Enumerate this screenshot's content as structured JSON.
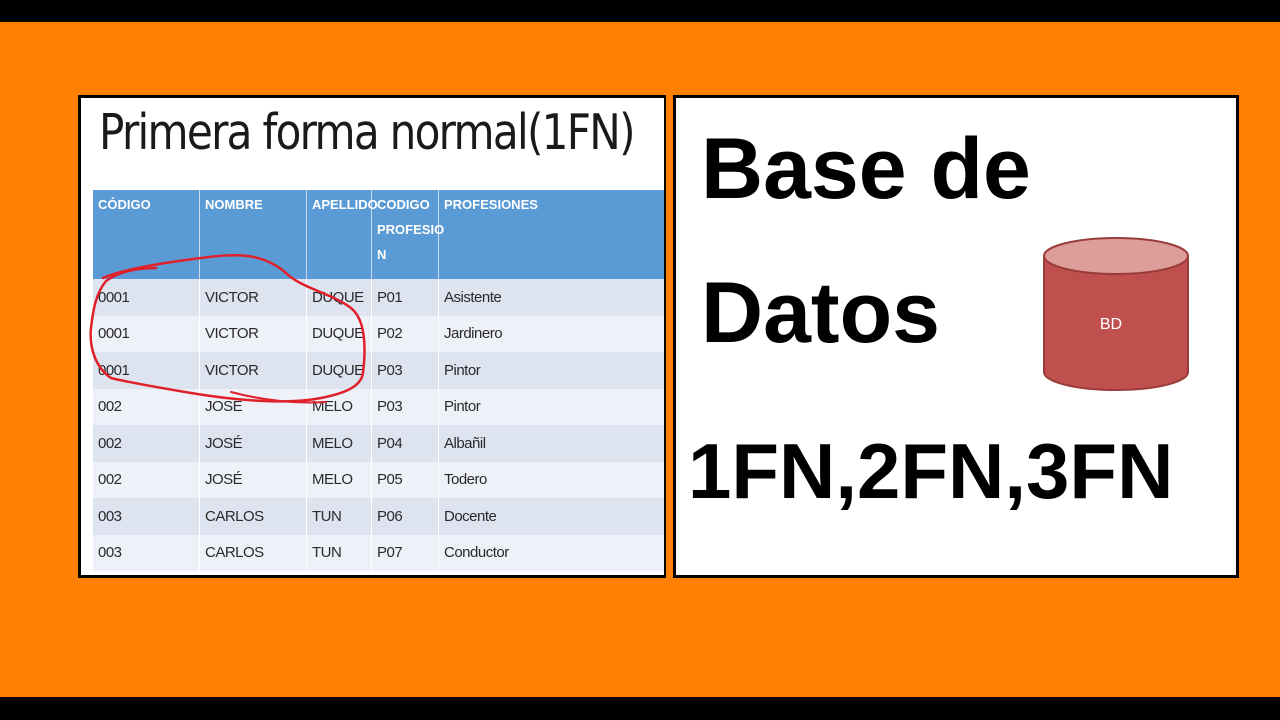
{
  "left": {
    "title": "Primera forma normal(1FN)",
    "headers": [
      "CÓDIGO",
      "NOMBRE",
      "APELLIDO",
      "CODIGO PROFESIO N",
      "PROFESIONES"
    ],
    "rows": [
      [
        "0001",
        "VICTOR",
        "DUQUE",
        "P01",
        "Asistente"
      ],
      [
        "0001",
        "VICTOR",
        "DUQUE",
        "P02",
        "Jardinero"
      ],
      [
        "0001",
        "VICTOR",
        "DUQUE",
        "P03",
        "Pintor"
      ],
      [
        "002",
        "JOSÉ",
        "MELO",
        "P03",
        "Pintor"
      ],
      [
        "002",
        "JOSÉ",
        "MELO",
        "P04",
        "Albañil"
      ],
      [
        "002",
        "JOSÉ",
        "MELO",
        "P05",
        "Todero"
      ],
      [
        "003",
        "CARLOS",
        "TUN",
        "P06",
        "Docente"
      ],
      [
        "003",
        "CARLOS",
        "TUN",
        "P07",
        "Conductor"
      ]
    ]
  },
  "right": {
    "line1": "Base de",
    "line2": "Datos",
    "line3": "1FN,2FN,3FN",
    "db_label": "BD"
  },
  "colors": {
    "background": "#ff8000",
    "header_blue": "#5b9bd5",
    "annotation_red": "#e0202a",
    "cylinder_red": "#c0504d"
  }
}
